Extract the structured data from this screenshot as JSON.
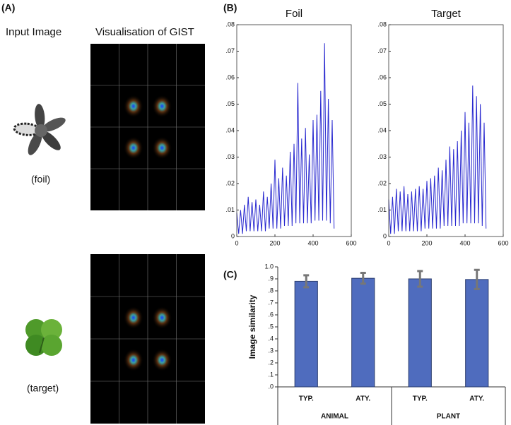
{
  "panel_labels": [
    "(A)",
    "(B)",
    "(C)"
  ],
  "panel_a": {
    "input_heading": "Input Image",
    "gist_heading": "Visualisation of GIST",
    "captions": [
      "(foil)",
      "(target)"
    ]
  },
  "chart_data": [
    {
      "type": "line",
      "title": "Foil",
      "x": [
        0,
        10,
        20,
        30,
        40,
        50,
        60,
        70,
        80,
        90,
        100,
        110,
        120,
        130,
        140,
        150,
        160,
        170,
        180,
        190,
        200,
        210,
        220,
        230,
        240,
        250,
        260,
        270,
        280,
        290,
        300,
        310,
        320,
        330,
        340,
        350,
        360,
        370,
        380,
        390,
        400,
        410,
        420,
        430,
        440,
        450,
        460,
        470,
        480,
        490,
        500,
        510
      ],
      "series": [
        {
          "color": "#2a2ad0",
          "values": [
            0.009,
            0.001,
            0.01,
            0.001,
            0.012,
            0.002,
            0.015,
            0.002,
            0.013,
            0.002,
            0.014,
            0.002,
            0.012,
            0.002,
            0.017,
            0.002,
            0.015,
            0.003,
            0.02,
            0.003,
            0.029,
            0.003,
            0.022,
            0.003,
            0.026,
            0.004,
            0.023,
            0.004,
            0.032,
            0.004,
            0.035,
            0.005,
            0.058,
            0.005,
            0.037,
            0.005,
            0.041,
            0.005,
            0.031,
            0.005,
            0.044,
            0.006,
            0.046,
            0.006,
            0.055,
            0.006,
            0.073,
            0.006,
            0.052,
            0.005,
            0.044,
            0.003
          ]
        }
      ],
      "xlim": [
        0,
        600
      ],
      "xticks": [
        0,
        200,
        400,
        600
      ],
      "ylim": [
        0,
        0.08
      ],
      "yticks": [
        0,
        {
          "value": 0.01,
          "label": ".01"
        },
        {
          "value": 0.02,
          "label": ".02"
        },
        {
          "value": 0.03,
          "label": ".03"
        },
        {
          "value": 0.04,
          "label": ".04"
        },
        {
          "value": 0.05,
          "label": ".05"
        },
        {
          "value": 0.06,
          "label": ".06"
        },
        {
          "value": 0.07,
          "label": ".07"
        },
        {
          "value": 0.08,
          "label": ".08"
        }
      ]
    },
    {
      "type": "line",
      "title": "Target",
      "x": [
        0,
        10,
        20,
        30,
        40,
        50,
        60,
        70,
        80,
        90,
        100,
        110,
        120,
        130,
        140,
        150,
        160,
        170,
        180,
        190,
        200,
        210,
        220,
        230,
        240,
        250,
        260,
        270,
        280,
        290,
        300,
        310,
        320,
        330,
        340,
        350,
        360,
        370,
        380,
        390,
        400,
        410,
        420,
        430,
        440,
        450,
        460,
        470,
        480,
        490,
        500,
        510
      ],
      "series": [
        {
          "color": "#2a2ad0",
          "values": [
            0.014,
            0.001,
            0.015,
            0.001,
            0.018,
            0.002,
            0.017,
            0.002,
            0.019,
            0.002,
            0.016,
            0.002,
            0.017,
            0.002,
            0.018,
            0.002,
            0.019,
            0.002,
            0.018,
            0.003,
            0.021,
            0.003,
            0.022,
            0.003,
            0.023,
            0.003,
            0.026,
            0.003,
            0.025,
            0.004,
            0.029,
            0.004,
            0.034,
            0.004,
            0.033,
            0.004,
            0.036,
            0.004,
            0.04,
            0.005,
            0.047,
            0.005,
            0.043,
            0.005,
            0.057,
            0.005,
            0.053,
            0.005,
            0.05,
            0.004,
            0.043,
            0.003
          ]
        }
      ],
      "xlim": [
        0,
        600
      ],
      "xticks": [
        0,
        200,
        400,
        600
      ],
      "ylim": [
        0,
        0.08
      ],
      "yticks": [
        0,
        {
          "value": 0.01,
          "label": ".01"
        },
        {
          "value": 0.02,
          "label": ".02"
        },
        {
          "value": 0.03,
          "label": ".03"
        },
        {
          "value": 0.04,
          "label": ".04"
        },
        {
          "value": 0.05,
          "label": ".05"
        },
        {
          "value": 0.06,
          "label": ".06"
        },
        {
          "value": 0.07,
          "label": ".07"
        },
        {
          "value": 0.08,
          "label": ".08"
        }
      ]
    },
    {
      "type": "bar",
      "y_label": "Image similarity",
      "categories": [
        "TYP.",
        "ATY.",
        "TYP.",
        "ATY."
      ],
      "groups": [
        "ANIMAL",
        "PLANT"
      ],
      "values": [
        0.88,
        0.905,
        0.9,
        0.895
      ],
      "errors": [
        0.05,
        0.045,
        0.065,
        0.08
      ],
      "color": "#4f6cbe",
      "error_color": "#777777",
      "ylim": [
        0,
        1
      ],
      "yticks": [
        {
          "value": 0,
          "label": ".0"
        },
        {
          "value": 0.1,
          "label": ".1"
        },
        {
          "value": 0.2,
          "label": ".2"
        },
        {
          "value": 0.3,
          "label": ".3"
        },
        {
          "value": 0.4,
          "label": ".4"
        },
        {
          "value": 0.5,
          "label": ".5"
        },
        {
          "value": 0.6,
          "label": ".6"
        },
        {
          "value": 0.7,
          "label": ".7"
        },
        {
          "value": 0.8,
          "label": ".8"
        },
        {
          "value": 0.9,
          "label": ".9"
        },
        {
          "value": 1,
          "label": "1.0"
        }
      ]
    }
  ]
}
